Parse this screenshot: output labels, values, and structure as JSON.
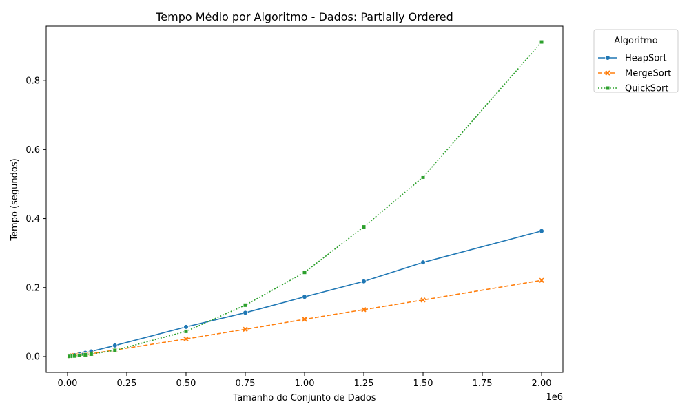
{
  "chart_data": {
    "type": "line",
    "title": "Tempo Médio por Algoritmo - Dados: Partially Ordered",
    "xlabel": "Tamanho do Conjunto de Dados",
    "ylabel": "Tempo (segundos)",
    "x_offset_label": "1e6",
    "xlim": [
      -90000,
      2090000
    ],
    "ylim": [
      -0.046,
      0.958
    ],
    "x_ticks": [
      0,
      250000,
      500000,
      750000,
      1000000,
      1250000,
      1500000,
      1750000,
      2000000
    ],
    "x_tick_labels": [
      "0.00",
      "0.25",
      "0.50",
      "0.75",
      "1.00",
      "1.25",
      "1.50",
      "1.75",
      "2.00"
    ],
    "y_ticks": [
      0.0,
      0.2,
      0.4,
      0.6,
      0.8
    ],
    "y_tick_labels": [
      "0.0",
      "0.2",
      "0.4",
      "0.6",
      "0.8"
    ],
    "grid": false,
    "legend_title": "Algoritmo",
    "legend_position": "outside top-right",
    "x": [
      10000,
      20000,
      30000,
      50000,
      75000,
      100000,
      200000,
      500000,
      750000,
      1000000,
      1250000,
      1500000,
      2000000
    ],
    "series": [
      {
        "name": "HeapSort",
        "color": "#1f77b4",
        "linestyle": "solid",
        "marker": "circle",
        "values": [
          0.001,
          0.003,
          0.004,
          0.007,
          0.011,
          0.015,
          0.032,
          0.086,
          0.127,
          0.173,
          0.218,
          0.273,
          0.364
        ]
      },
      {
        "name": "MergeSort",
        "color": "#ff7f0e",
        "linestyle": "dashed",
        "marker": "x",
        "values": [
          0.001,
          0.002,
          0.003,
          0.004,
          0.006,
          0.008,
          0.019,
          0.051,
          0.079,
          0.108,
          0.136,
          0.164,
          0.221
        ]
      },
      {
        "name": "QuickSort",
        "color": "#2ca02c",
        "linestyle": "dotted",
        "marker": "square",
        "values": [
          0.0005,
          0.001,
          0.0015,
          0.003,
          0.005,
          0.007,
          0.018,
          0.073,
          0.149,
          0.244,
          0.376,
          0.52,
          0.912
        ]
      }
    ]
  }
}
